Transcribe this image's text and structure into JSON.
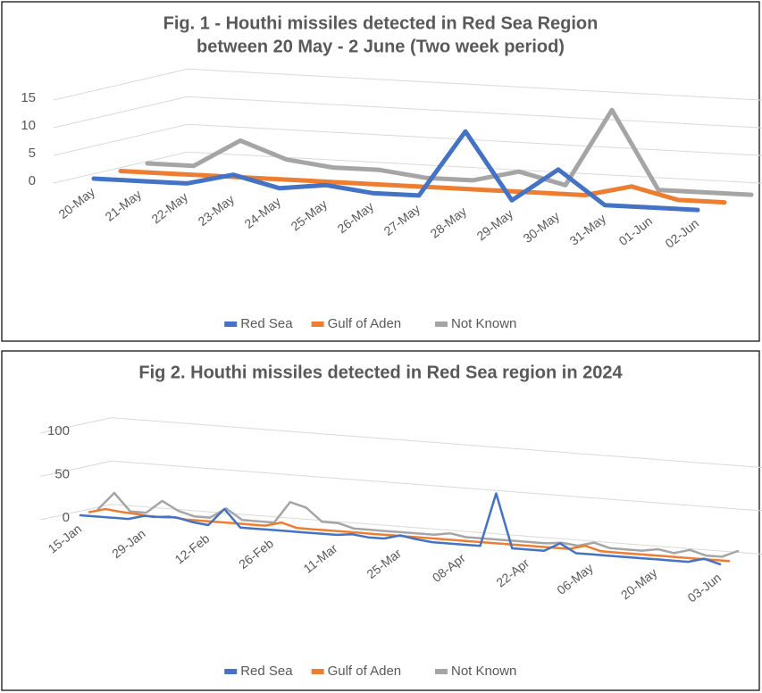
{
  "chart_data": [
    {
      "type": "line3d",
      "title": [
        "Fig. 1 - Houthi missiles detected in Red Sea Region",
        "between 20 May - 2 June (Two week period)"
      ],
      "categories": [
        "20-May",
        "21-May",
        "22-May",
        "23-May",
        "24-May",
        "25-May",
        "26-May",
        "27-May",
        "28-May",
        "29-May",
        "30-May",
        "31-May",
        "01-Jun",
        "02-Jun"
      ],
      "series": [
        {
          "name": "Red Sea",
          "color": "#4472c4",
          "values": [
            0,
            0,
            0,
            2,
            0,
            1,
            0,
            0,
            12,
            0,
            6,
            0,
            0,
            0
          ]
        },
        {
          "name": "Gulf of Aden",
          "color": "#ed7d31",
          "values": [
            0,
            0,
            0,
            0,
            0,
            0,
            0,
            0,
            0,
            0,
            0,
            2,
            0,
            0
          ]
        },
        {
          "name": "Not Known",
          "color": "#a5a5a5",
          "values": [
            0,
            0,
            5,
            2,
            1,
            1,
            0,
            0,
            2,
            0,
            14,
            0,
            0,
            0
          ]
        }
      ],
      "ylim": [
        0,
        15
      ],
      "yticks": [
        0,
        5,
        10,
        15
      ],
      "grid": true,
      "legend": "bottom"
    },
    {
      "type": "line3d",
      "title": [
        "Fig 2. Houthi missiles detected in Red Sea region in 2024"
      ],
      "categories": [
        "15-Jan",
        null,
        null,
        null,
        "29-Jan",
        null,
        null,
        null,
        "12-Feb",
        null,
        null,
        null,
        "26-Feb",
        null,
        null,
        null,
        "11-Mar",
        null,
        null,
        null,
        "25-Mar",
        null,
        null,
        null,
        "08-Apr",
        null,
        null,
        null,
        "22-Apr",
        null,
        null,
        null,
        "06-May",
        null,
        null,
        null,
        "20-May",
        null,
        null,
        null,
        "03-Jun"
      ],
      "series": [
        {
          "name": "Red Sea",
          "color": "#4472c4",
          "values": [
            0,
            0,
            0,
            0,
            5,
            5,
            6,
            2,
            0,
            20,
            0,
            0,
            0,
            0,
            0,
            0,
            0,
            2,
            0,
            0,
            5,
            2,
            0,
            0,
            0,
            0,
            62,
            0,
            0,
            0,
            10,
            0,
            0,
            0,
            0,
            0,
            0,
            0,
            0,
            5,
            0
          ]
        },
        {
          "name": "Gulf of Aden",
          "color": "#ed7d31",
          "values": [
            0,
            5,
            3,
            2,
            0,
            2,
            0,
            0,
            0,
            0,
            0,
            0,
            5,
            0,
            0,
            0,
            0,
            0,
            0,
            0,
            0,
            0,
            0,
            0,
            0,
            0,
            0,
            0,
            0,
            0,
            0,
            5,
            0,
            0,
            0,
            0,
            0,
            0,
            0,
            0,
            0
          ]
        },
        {
          "name": "Not Known",
          "color": "#a5a5a5",
          "values": [
            0,
            20,
            0,
            0,
            15,
            5,
            0,
            0,
            12,
            0,
            0,
            0,
            25,
            20,
            5,
            5,
            0,
            0,
            0,
            0,
            0,
            0,
            3,
            0,
            0,
            0,
            0,
            0,
            0,
            2,
            0,
            5,
            0,
            0,
            0,
            3,
            0,
            5,
            0,
            0,
            8
          ]
        }
      ],
      "ylim": [
        0,
        100
      ],
      "yticks": [
        0,
        50,
        100
      ],
      "grid": true,
      "legend": "bottom"
    }
  ]
}
